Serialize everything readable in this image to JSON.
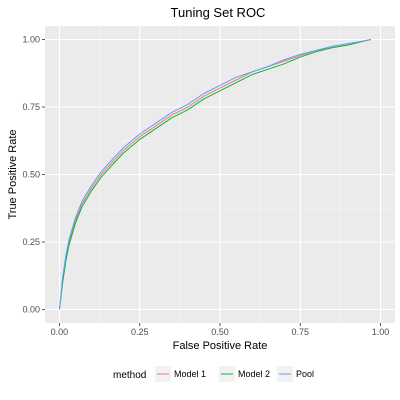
{
  "chart_data": {
    "type": "line",
    "title": "Tuning Set ROC",
    "xlabel": "False Positive Rate",
    "ylabel": "True Positive Rate",
    "xlim": [
      0,
      1
    ],
    "ylim": [
      0,
      1
    ],
    "grid": true,
    "x_ticks": [
      "0.00",
      "0.25",
      "0.50",
      "0.75",
      "1.00"
    ],
    "y_ticks": [
      "0.00",
      "0.25",
      "0.50",
      "0.75",
      "1.00"
    ],
    "legend": {
      "title": "method",
      "position": "bottom"
    },
    "series": [
      {
        "name": "Model 1",
        "color": "#F8766D",
        "x": [
          0,
          0.01,
          0.02,
          0.03,
          0.05,
          0.07,
          0.1,
          0.13,
          0.16,
          0.2,
          0.25,
          0.3,
          0.35,
          0.4,
          0.45,
          0.5,
          0.55,
          0.6,
          0.65,
          0.7,
          0.75,
          0.8,
          0.85,
          0.9,
          0.95,
          0.97
        ],
        "y": [
          0,
          0.11,
          0.19,
          0.25,
          0.33,
          0.39,
          0.45,
          0.5,
          0.54,
          0.59,
          0.64,
          0.68,
          0.72,
          0.75,
          0.79,
          0.82,
          0.85,
          0.88,
          0.9,
          0.92,
          0.94,
          0.96,
          0.97,
          0.98,
          0.995,
          1.0
        ]
      },
      {
        "name": "Model 2",
        "color": "#00BA38",
        "x": [
          0,
          0.01,
          0.02,
          0.03,
          0.05,
          0.07,
          0.1,
          0.13,
          0.16,
          0.2,
          0.25,
          0.3,
          0.35,
          0.4,
          0.45,
          0.5,
          0.55,
          0.6,
          0.65,
          0.7,
          0.75,
          0.8,
          0.85,
          0.9,
          0.95,
          0.97
        ],
        "y": [
          0,
          0.1,
          0.18,
          0.24,
          0.32,
          0.38,
          0.44,
          0.49,
          0.53,
          0.58,
          0.63,
          0.67,
          0.71,
          0.74,
          0.78,
          0.81,
          0.84,
          0.87,
          0.89,
          0.91,
          0.935,
          0.955,
          0.97,
          0.98,
          0.995,
          1.0
        ]
      },
      {
        "name": "Pool",
        "color": "#619CFF",
        "x": [
          0,
          0.01,
          0.02,
          0.03,
          0.05,
          0.07,
          0.1,
          0.13,
          0.16,
          0.2,
          0.25,
          0.3,
          0.35,
          0.4,
          0.45,
          0.5,
          0.55,
          0.6,
          0.65,
          0.7,
          0.75,
          0.8,
          0.85,
          0.9,
          0.95,
          0.97
        ],
        "y": [
          0,
          0.12,
          0.2,
          0.26,
          0.34,
          0.4,
          0.46,
          0.51,
          0.55,
          0.6,
          0.65,
          0.69,
          0.73,
          0.76,
          0.8,
          0.83,
          0.86,
          0.88,
          0.9,
          0.925,
          0.945,
          0.96,
          0.975,
          0.985,
          0.995,
          1.0
        ]
      }
    ]
  }
}
